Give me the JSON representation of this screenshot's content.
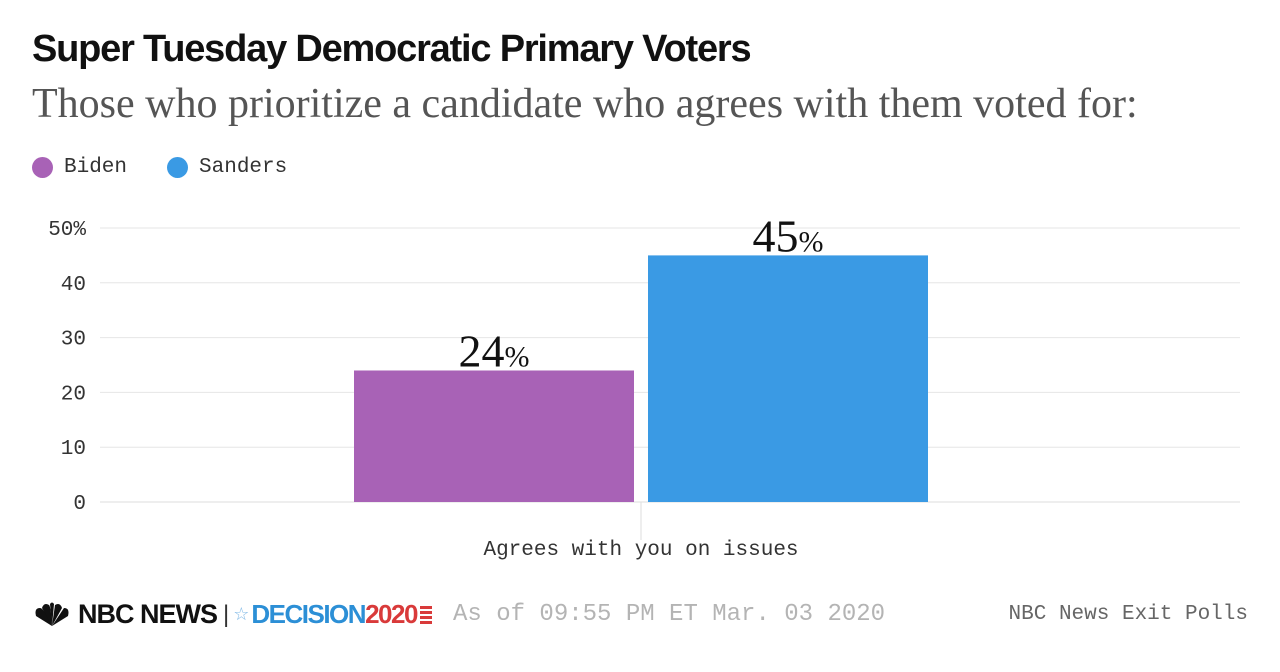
{
  "title": "Super Tuesday Democratic Primary Voters",
  "subtitle": "Those who prioritize a candidate who agrees with them voted for:",
  "legend": [
    {
      "label": "Biden",
      "color": "#a862b6"
    },
    {
      "label": "Sanders",
      "color": "#3a9ae4"
    }
  ],
  "chart_data": {
    "type": "bar",
    "title": "Super Tuesday Democratic Primary Voters",
    "subtitle": "Those who prioritize a candidate who agrees with them voted for:",
    "categories": [
      "Agrees with you on issues"
    ],
    "series": [
      {
        "name": "Biden",
        "color": "#a862b6",
        "values": [
          24
        ],
        "labels": [
          "24"
        ]
      },
      {
        "name": "Sanders",
        "color": "#3a9ae4",
        "values": [
          45
        ],
        "labels": [
          "45"
        ]
      }
    ],
    "value_suffix": "%",
    "yticks": [
      "0",
      "10",
      "20",
      "30",
      "40",
      "50%"
    ],
    "ylim": [
      0,
      50
    ],
    "xlabel": "",
    "ylabel": "",
    "grid": true,
    "legend_position": "top-left"
  },
  "footer": {
    "brand": "NBC NEWS",
    "separator": "|",
    "decision_label": "DECISION",
    "decision_year": "2020",
    "as_of": "As of 09:55 PM ET Mar. 03 2020",
    "source": "NBC News Exit Polls"
  },
  "colors": {
    "grid": "#e6e6e6",
    "axis_text": "#333333",
    "value_label": "#111111"
  },
  "icons": {
    "brand_logo": "nbc-peacock-icon",
    "decision_mark": "star-icon"
  }
}
